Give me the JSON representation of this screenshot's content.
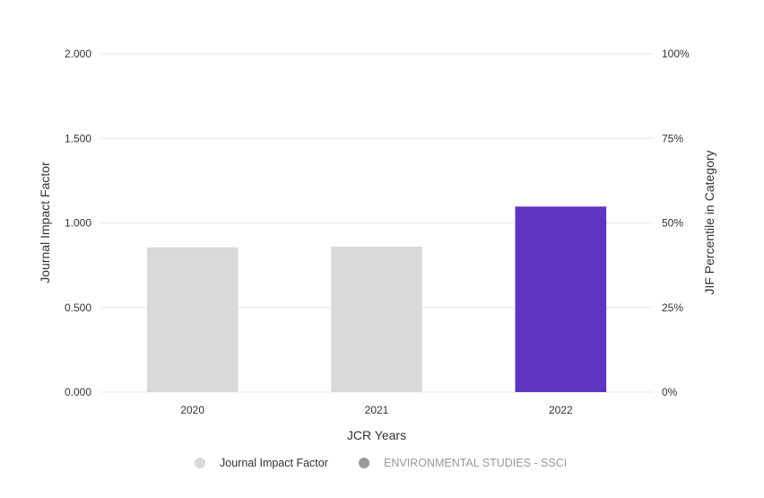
{
  "chart_data": {
    "type": "bar",
    "categories": [
      "2020",
      "2021",
      "2022"
    ],
    "series": [
      {
        "name": "Journal Impact Factor",
        "values": [
          0.856,
          0.86,
          1.097
        ],
        "colors": [
          "#d9d9d9",
          "#d9d9d9",
          "#5e35c1"
        ]
      }
    ],
    "xlabel": "JCR Years",
    "ylabel": "Journal Impact Factor",
    "y2label": "JIF Percentile in Category",
    "ylim": [
      0,
      2
    ],
    "y2lim": [
      0,
      100
    ],
    "yticks": [
      "0.000",
      "0.500",
      "1.000",
      "1.500",
      "2.000"
    ],
    "y2ticks": [
      "0%",
      "25%",
      "50%",
      "75%",
      "100%"
    ],
    "grid": true,
    "legend": {
      "position": "bottom",
      "items": [
        {
          "label": "Journal Impact Factor",
          "color": "#d9d9d9",
          "text_color": "#333333",
          "active": true
        },
        {
          "label": "ENVIRONMENTAL STUDIES - SSCI",
          "color": "#999999",
          "text_color": "#999999",
          "active": false
        }
      ]
    }
  }
}
